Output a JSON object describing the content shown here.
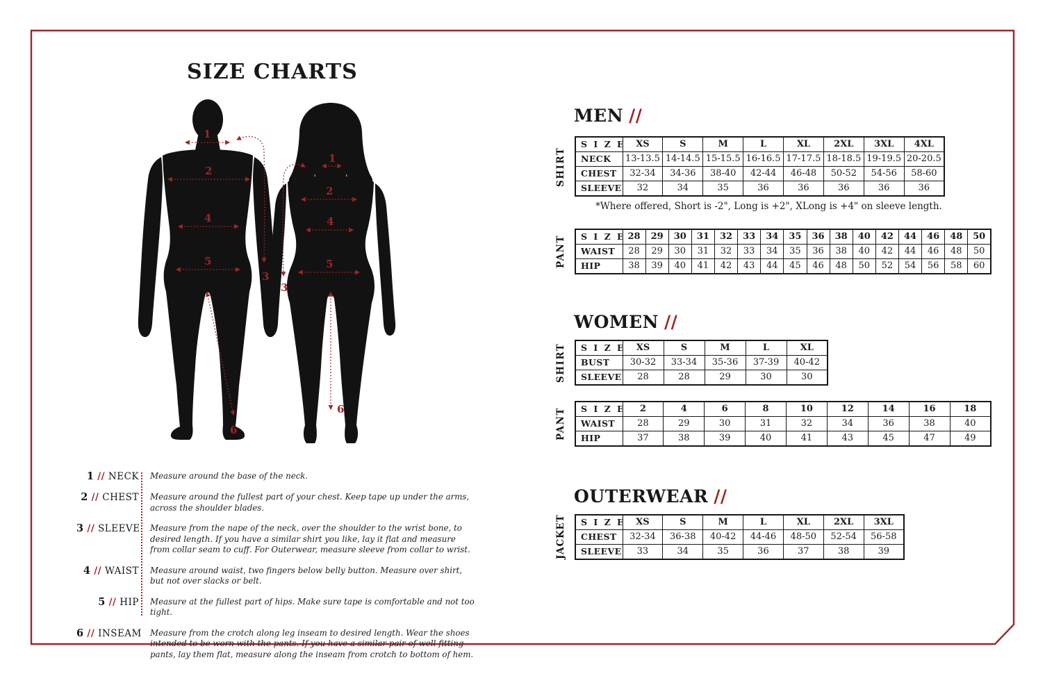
{
  "page": {
    "title": "SIZE CHARTS"
  },
  "colors": {
    "accent": "#9E2526",
    "border": "#9B272B",
    "ink": "#161616"
  },
  "figure": {
    "markers": {
      "neck": "1",
      "chest": "2",
      "sleeve": "3",
      "waist": "4",
      "hip": "5",
      "inseam": "6"
    }
  },
  "sections": {
    "men": {
      "heading": "MEN",
      "slashes": "//",
      "shirt": {
        "side_label": "SHIRT",
        "size_row_label": "S I Z E",
        "sizes": [
          "XS",
          "S",
          "M",
          "L",
          "XL",
          "2XL",
          "3XL",
          "4XL"
        ],
        "rows": [
          {
            "label": "NECK",
            "values": [
              "13-13.5",
              "14-14.5",
              "15-15.5",
              "16-16.5",
              "17-17.5",
              "18-18.5",
              "19-19.5",
              "20-20.5"
            ]
          },
          {
            "label": "CHEST",
            "values": [
              "32-34",
              "34-36",
              "38-40",
              "42-44",
              "46-48",
              "50-52",
              "54-56",
              "58-60"
            ]
          },
          {
            "label": "SLEEVE",
            "values": [
              "32",
              "34",
              "35",
              "36",
              "36",
              "36",
              "36",
              "36"
            ]
          }
        ],
        "footnote": "*Where offered, Short is -2\", Long is +2\", XLong is +4\" on sleeve length."
      },
      "pant": {
        "side_label": "PANT",
        "size_row_label": "S I Z E",
        "sizes": [
          "28",
          "29",
          "30",
          "31",
          "32",
          "33",
          "34",
          "35",
          "36",
          "38",
          "40",
          "42",
          "44",
          "46",
          "48",
          "50"
        ],
        "rows": [
          {
            "label": "WAIST",
            "values": [
              "28",
              "29",
              "30",
              "31",
              "32",
              "33",
              "34",
              "35",
              "36",
              "38",
              "40",
              "42",
              "44",
              "46",
              "48",
              "50"
            ]
          },
          {
            "label": "HIP",
            "values": [
              "38",
              "39",
              "40",
              "41",
              "42",
              "43",
              "44",
              "45",
              "46",
              "48",
              "50",
              "52",
              "54",
              "56",
              "58",
              "60"
            ]
          }
        ]
      }
    },
    "women": {
      "heading": "WOMEN",
      "slashes": "//",
      "shirt": {
        "side_label": "SHIRT",
        "size_row_label": "S I Z E",
        "sizes": [
          "XS",
          "S",
          "M",
          "L",
          "XL"
        ],
        "rows": [
          {
            "label": "BUST",
            "values": [
              "30-32",
              "33-34",
              "35-36",
              "37-39",
              "40-42"
            ]
          },
          {
            "label": "SLEEVE",
            "values": [
              "28",
              "28",
              "29",
              "30",
              "30"
            ]
          }
        ]
      },
      "pant": {
        "side_label": "PANT",
        "size_row_label": "S I Z E",
        "sizes": [
          "2",
          "4",
          "6",
          "8",
          "10",
          "12",
          "14",
          "16",
          "18"
        ],
        "rows": [
          {
            "label": "WAIST",
            "values": [
              "28",
              "29",
              "30",
              "31",
              "32",
              "34",
              "36",
              "38",
              "40"
            ]
          },
          {
            "label": "HIP",
            "values": [
              "37",
              "38",
              "39",
              "40",
              "41",
              "43",
              "45",
              "47",
              "49"
            ]
          }
        ]
      }
    },
    "outerwear": {
      "heading": "OUTERWEAR",
      "slashes": "//",
      "jacket": {
        "side_label": "JACKET",
        "size_row_label": "S I Z E",
        "sizes": [
          "XS",
          "S",
          "M",
          "L",
          "XL",
          "2XL",
          "3XL"
        ],
        "rows": [
          {
            "label": "CHEST",
            "values": [
              "32-34",
              "36-38",
              "40-42",
              "44-46",
              "48-50",
              "52-54",
              "56-58"
            ]
          },
          {
            "label": "SLEEVE",
            "values": [
              "33",
              "34",
              "35",
              "36",
              "37",
              "38",
              "39"
            ]
          }
        ]
      }
    }
  },
  "definitions": [
    {
      "num": "1",
      "sep": "//",
      "term": "NECK",
      "desc": "Measure around the base of the neck."
    },
    {
      "num": "2",
      "sep": "//",
      "term": "CHEST",
      "desc": "Measure around the fullest part of your chest. Keep tape up under the arms, across the shoulder blades."
    },
    {
      "num": "3",
      "sep": "//",
      "term": "SLEEVE",
      "desc": "Measure from the nape of the neck, over the shoulder to the wrist bone, to desired length. If you have a similar shirt you like, lay it flat and measure from collar seam to cuff. For Outerwear, measure sleeve from collar to wrist."
    },
    {
      "num": "4",
      "sep": "//",
      "term": "WAIST",
      "desc": "Measure around waist, two fingers below belly button. Measure over shirt, but not over slacks or belt."
    },
    {
      "num": "5",
      "sep": "//",
      "term": "HIP",
      "desc": "Measure at the fullest part of hips. Make sure tape is comfortable and not too tight."
    },
    {
      "num": "6",
      "sep": "//",
      "term": "INSEAM",
      "desc": "Measure from the crotch along leg inseam to desired length. Wear the shoes intended to be worn with the pants. If you have a similar pair of well fitting pants, lay them flat, measure along the inseam from crotch to bottom of hem."
    }
  ]
}
